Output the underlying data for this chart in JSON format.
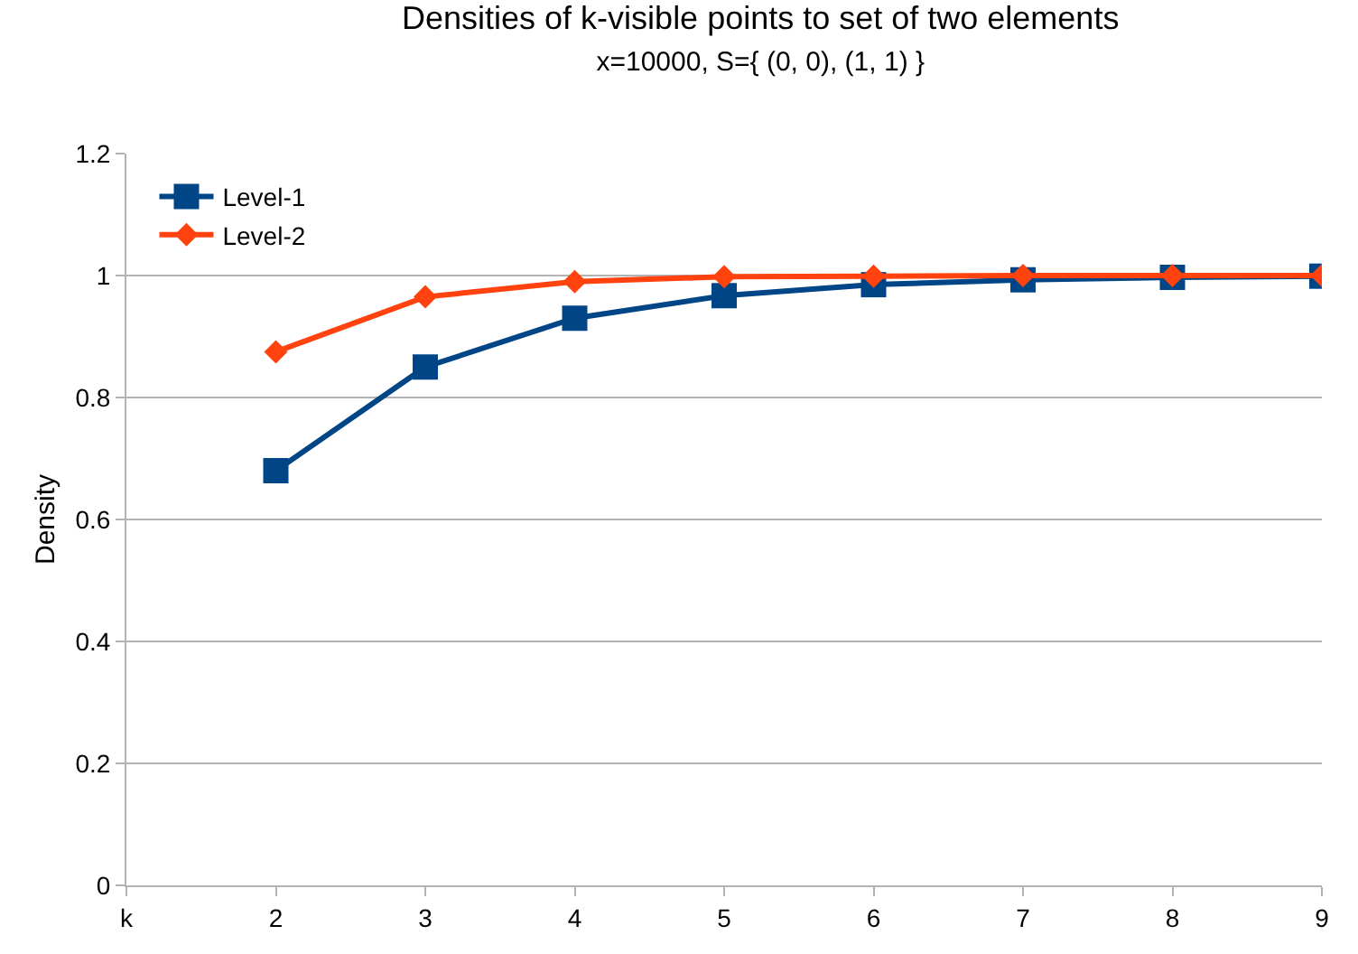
{
  "chart_data": {
    "type": "line",
    "title": "Densities of k-visible points to set of two elements",
    "subtitle": "x=10000, S={ (0, 0), (1, 1) }",
    "ylabel": "Density",
    "categories": [
      "k",
      "2",
      "3",
      "4",
      "5",
      "6",
      "7",
      "8",
      "9"
    ],
    "series": [
      {
        "name": "Level-1",
        "color": "#004586",
        "marker": "square",
        "values": [
          null,
          0.68,
          0.85,
          0.93,
          0.967,
          0.985,
          0.993,
          0.997,
          0.999
        ]
      },
      {
        "name": "Level-2",
        "color": "#ff420e",
        "marker": "diamond",
        "values": [
          null,
          0.875,
          0.965,
          0.99,
          0.998,
          0.999,
          1.0,
          1.0,
          1.0
        ]
      }
    ],
    "ylim": [
      0,
      1.2
    ],
    "yticks": [
      0,
      0.2,
      0.4,
      0.6,
      0.8,
      1,
      1.2
    ],
    "grid": "y",
    "legend": "top left",
    "line_style": "solid"
  }
}
